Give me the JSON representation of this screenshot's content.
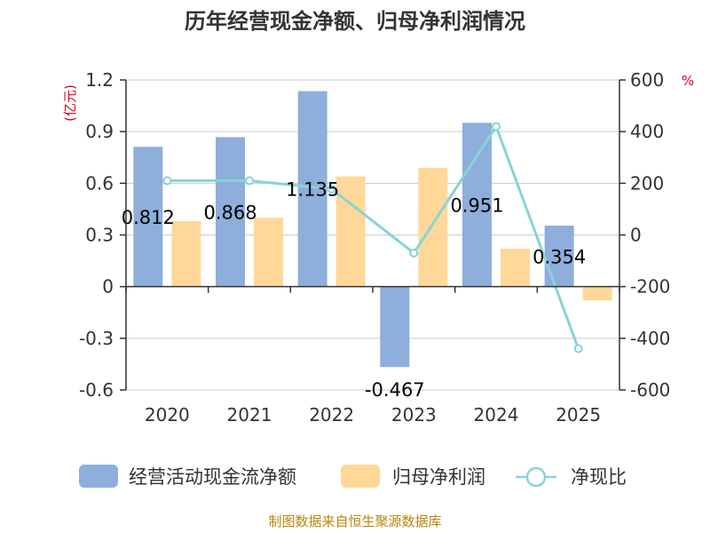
{
  "chart_data": {
    "type": "bar",
    "title": "历年经营现金净额、归母净利润情况",
    "categories": [
      "2020",
      "2021",
      "2022",
      "2023",
      "2024",
      "2025"
    ],
    "series": [
      {
        "name": "经营活动现金流净额",
        "values": [
          0.812,
          0.868,
          1.135,
          -0.467,
          0.951,
          0.354
        ],
        "axis": "left",
        "color": "#8eaedb",
        "data_labels": [
          "0.812",
          "0.868",
          "1.135",
          "-0.467",
          "0.951",
          "0.354"
        ]
      },
      {
        "name": "归母净利润",
        "values": [
          0.38,
          0.4,
          0.64,
          0.69,
          0.22,
          -0.08
        ],
        "axis": "left",
        "color": "#ffd899"
      },
      {
        "name": "净现比",
        "type": "line",
        "values": [
          210,
          210,
          178,
          -70,
          420,
          -440
        ],
        "axis": "right",
        "color": "#88d3d8"
      }
    ],
    "ylabel": "(亿元)",
    "ylim": [
      -0.6,
      1.2
    ],
    "y_ticks": [
      "1.2",
      "0.9",
      "0.6",
      "0.3",
      "0",
      "-0.3",
      "-0.6"
    ],
    "y2label": "%",
    "y2lim": [
      -600,
      600
    ],
    "y2_ticks": [
      "600",
      "400",
      "200",
      "0",
      "-200",
      "-400",
      "-600"
    ],
    "grid": true,
    "legend_position": "bottom"
  },
  "source_text": "制图数据来自恒生聚源数据库"
}
